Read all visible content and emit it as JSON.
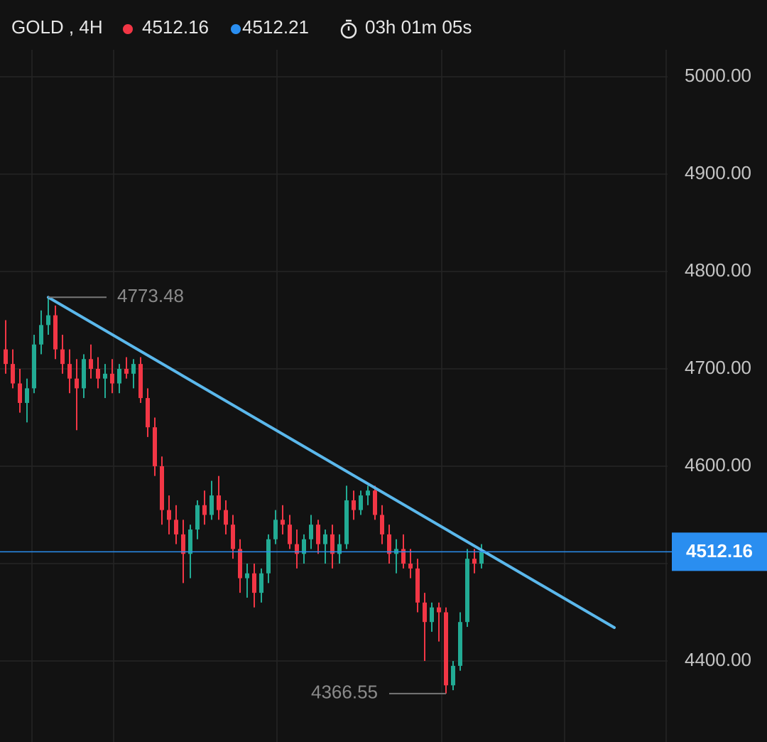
{
  "chart_data": {
    "type": "candlestick",
    "title": "GOLD , 4H",
    "bid": 4512.16,
    "ask": 4512.21,
    "timer": "03h 01m 05s",
    "bid_color": "#f23645",
    "ask_color": "#2a8ef0",
    "up_color": "#22ab94",
    "down_color": "#f23645",
    "trendline_color": "#5bb8ec",
    "price_line_color": "#2a8ef0",
    "open": [
      4720,
      4705,
      4685,
      4665,
      4680,
      4725,
      4745,
      4755,
      4720,
      4705,
      4690,
      4680,
      4710,
      4700,
      4690,
      4695,
      4685,
      4700,
      4695,
      4705,
      4670,
      4640,
      4600,
      4555,
      4545,
      4530,
      4510,
      4535,
      4560,
      4550,
      4570,
      4555,
      4540,
      4515,
      4485,
      4490,
      4470,
      4490,
      4525,
      4545,
      4540,
      4520,
      4510,
      4525,
      4540,
      4520,
      4530,
      4510,
      4520,
      4565,
      4555,
      4570,
      4575,
      4550,
      4530,
      4510,
      4515,
      4500,
      4495,
      4460,
      4440,
      4455,
      4450,
      4375,
      4395,
      4440,
      4505,
      4500
    ],
    "high": [
      4750,
      4720,
      4700,
      4690,
      4735,
      4760,
      4773.48,
      4765,
      4735,
      4720,
      4710,
      4715,
      4725,
      4712,
      4705,
      4710,
      4705,
      4712,
      4710,
      4712,
      4680,
      4650,
      4610,
      4570,
      4560,
      4545,
      4540,
      4565,
      4575,
      4585,
      4590,
      4565,
      4550,
      4525,
      4500,
      4500,
      4495,
      4530,
      4555,
      4560,
      4550,
      4535,
      4530,
      4550,
      4545,
      4535,
      4540,
      4530,
      4580,
      4575,
      4575,
      4580,
      4580,
      4560,
      4540,
      4525,
      4530,
      4515,
      4505,
      4470,
      4460,
      4460,
      4455,
      4400,
      4450,
      4515,
      4515,
      4520
    ],
    "low": [
      4695,
      4680,
      4655,
      4645,
      4675,
      4715,
      4735,
      4710,
      4695,
      4675,
      4637,
      4670,
      4690,
      4680,
      4670,
      4675,
      4675,
      4690,
      4680,
      4665,
      4630,
      4590,
      4540,
      4530,
      4520,
      4480,
      4485,
      4525,
      4540,
      4545,
      4545,
      4530,
      4505,
      4470,
      4465,
      4455,
      4460,
      4480,
      4520,
      4530,
      4515,
      4495,
      4500,
      4515,
      4510,
      4500,
      4495,
      4500,
      4515,
      4545,
      4550,
      4560,
      4545,
      4520,
      4500,
      4490,
      4495,
      4485,
      4450,
      4400,
      4430,
      4420,
      4366.55,
      4370,
      4390,
      4435,
      4490,
      4495
    ],
    "close": [
      4705,
      4685,
      4665,
      4680,
      4725,
      4745,
      4755,
      4720,
      4705,
      4690,
      4680,
      4710,
      4700,
      4690,
      4695,
      4685,
      4700,
      4695,
      4705,
      4670,
      4640,
      4600,
      4555,
      4545,
      4530,
      4510,
      4535,
      4560,
      4550,
      4570,
      4555,
      4540,
      4515,
      4485,
      4490,
      4470,
      4490,
      4525,
      4545,
      4540,
      4520,
      4510,
      4525,
      4540,
      4520,
      4530,
      4510,
      4520,
      4565,
      4555,
      4570,
      4575,
      4550,
      4530,
      4510,
      4515,
      4500,
      4495,
      4460,
      4440,
      4455,
      4450,
      4375,
      4395,
      4440,
      4505,
      4500,
      4512.16
    ],
    "trendline": [
      4773.48,
      4434.3
    ],
    "ylim": [
      4316.8,
      5027.7
    ],
    "yticks": [
      {
        "value": 5000,
        "label": "5000.00"
      },
      {
        "value": 4900,
        "label": "4900.00"
      },
      {
        "value": 4800,
        "label": "4800.00"
      },
      {
        "value": 4700,
        "label": "4700.00"
      },
      {
        "value": 4600,
        "label": "4600.00"
      },
      {
        "value": 4400,
        "label": "4400.00"
      }
    ],
    "grid_values": [
      5000,
      4900,
      4800,
      4700,
      4600,
      4500,
      4400
    ],
    "high_label": 4773.48,
    "low_label": 4366.55
  }
}
